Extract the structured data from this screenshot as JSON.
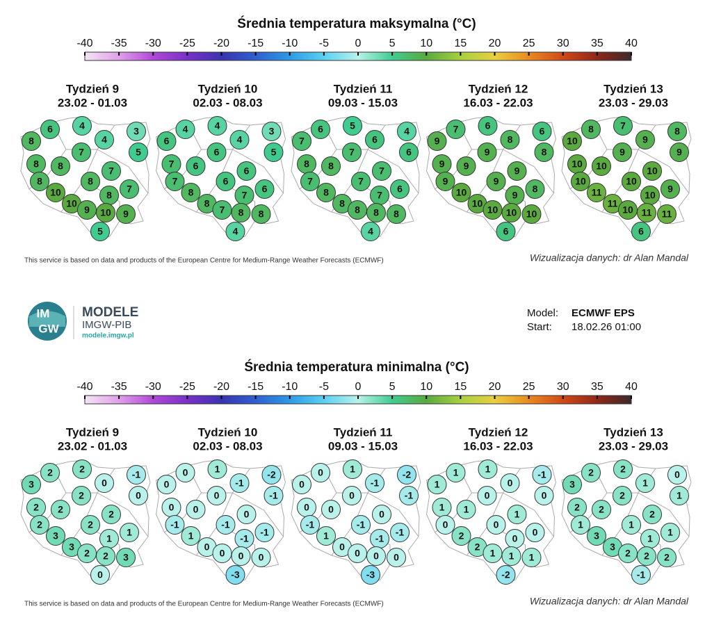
{
  "colormap": [
    "#f4e4f6",
    "#e0a0e8",
    "#b048d8",
    "#7a30c8",
    "#3a34b0",
    "#2f5fd0",
    "#2e9ae6",
    "#5ad0f2",
    "#b8f2ea",
    "#40cc90",
    "#5aaa40",
    "#a8d040",
    "#e8d040",
    "#e88a20",
    "#d04818",
    "#902818",
    "#3a2a2a"
  ],
  "panels": [
    {
      "title": "Średnia temperatura maksymalna (°C)",
      "ticks": [
        -40,
        -35,
        -30,
        -25,
        -20,
        -15,
        -10,
        -5,
        0,
        5,
        10,
        15,
        20,
        25,
        30,
        35,
        40
      ],
      "weeks": [
        {
          "title": "Tydzień 9",
          "dates": "23.02 - 01.03",
          "values": [
            8,
            6,
            4,
            4,
            3,
            5,
            7,
            8,
            8,
            7,
            8,
            10,
            8,
            8,
            7,
            10,
            9,
            10,
            9,
            5
          ]
        },
        {
          "title": "Tydzień 10",
          "dates": "02.03 - 08.03",
          "values": [
            6,
            4,
            4,
            4,
            3,
            5,
            6,
            7,
            6,
            6,
            7,
            8,
            6,
            7,
            6,
            8,
            7,
            8,
            8,
            4
          ]
        },
        {
          "title": "Tydzień 11",
          "dates": "09.03 - 15.03",
          "values": [
            7,
            6,
            5,
            6,
            4,
            6,
            7,
            8,
            8,
            7,
            7,
            8,
            7,
            7,
            6,
            8,
            8,
            8,
            8,
            4
          ]
        },
        {
          "title": "Tydzień 12",
          "dates": "16.03 - 22.03",
          "values": [
            9,
            7,
            6,
            8,
            6,
            8,
            9,
            9,
            9,
            9,
            9,
            10,
            9,
            9,
            8,
            10,
            10,
            10,
            10,
            6
          ]
        },
        {
          "title": "Tydzień 13",
          "dates": "23.03 - 29.03",
          "values": [
            10,
            8,
            7,
            9,
            8,
            9,
            9,
            10,
            10,
            10,
            10,
            11,
            10,
            10,
            9,
            11,
            10,
            11,
            11,
            6
          ]
        }
      ],
      "source_note": "This service is based on data and products of the European Centre for Medium-Range Weather Forecasts (ECMWF)",
      "credit": "Wizualizacja danych: dr Alan Mandal"
    },
    {
      "title": "Średnia temperatura minimalna (°C)",
      "ticks": [
        -40,
        -35,
        -30,
        -25,
        -20,
        -15,
        -10,
        -5,
        0,
        5,
        10,
        15,
        20,
        25,
        30,
        35,
        40
      ],
      "weeks": [
        {
          "title": "Tydzień 9",
          "dates": "23.02 - 01.03",
          "values": [
            3,
            2,
            2,
            0,
            -1,
            0,
            2,
            2,
            2,
            2,
            2,
            3,
            2,
            1,
            1,
            3,
            2,
            2,
            3,
            0
          ]
        },
        {
          "title": "Tydzień 10",
          "dates": "02.03 - 08.03",
          "values": [
            0,
            0,
            1,
            -1,
            -2,
            -1,
            0,
            0,
            0,
            0,
            -1,
            1,
            -1,
            -1,
            -1,
            0,
            0,
            0,
            0,
            -3
          ]
        },
        {
          "title": "Tydzień 11",
          "dates": "09.03 - 15.03",
          "values": [
            0,
            0,
            1,
            -1,
            -2,
            -1,
            0,
            0,
            0,
            0,
            -1,
            1,
            -1,
            -1,
            -1,
            0,
            0,
            0,
            0,
            -3
          ]
        },
        {
          "title": "Tydzień 12",
          "dates": "16.03 - 22.03",
          "values": [
            1,
            1,
            1,
            0,
            -1,
            0,
            0,
            1,
            1,
            1,
            0,
            2,
            0,
            0,
            0,
            2,
            1,
            1,
            1,
            -2
          ]
        },
        {
          "title": "Tydzień 13",
          "dates": "23.03 - 29.03",
          "values": [
            3,
            2,
            2,
            1,
            0,
            1,
            2,
            2,
            2,
            2,
            1,
            3,
            1,
            1,
            1,
            3,
            2,
            2,
            2,
            -1
          ]
        }
      ],
      "source_note": "This service is based on data and products of the European Centre for Medium-Range Weather Forecasts (ECMWF)",
      "credit": "Wizualizacja danych: dr Alan Mandal"
    }
  ],
  "logo": {
    "mark_top": "IM",
    "mark_bottom": "GW",
    "name": "MODELE",
    "org": "IMGW-PIB",
    "url": "modele.imgw.pl"
  },
  "model_info": {
    "model_label": "Model:",
    "model": "ECMWF EPS",
    "start_label": "Start:",
    "start": "18.02.26 01:00"
  }
}
